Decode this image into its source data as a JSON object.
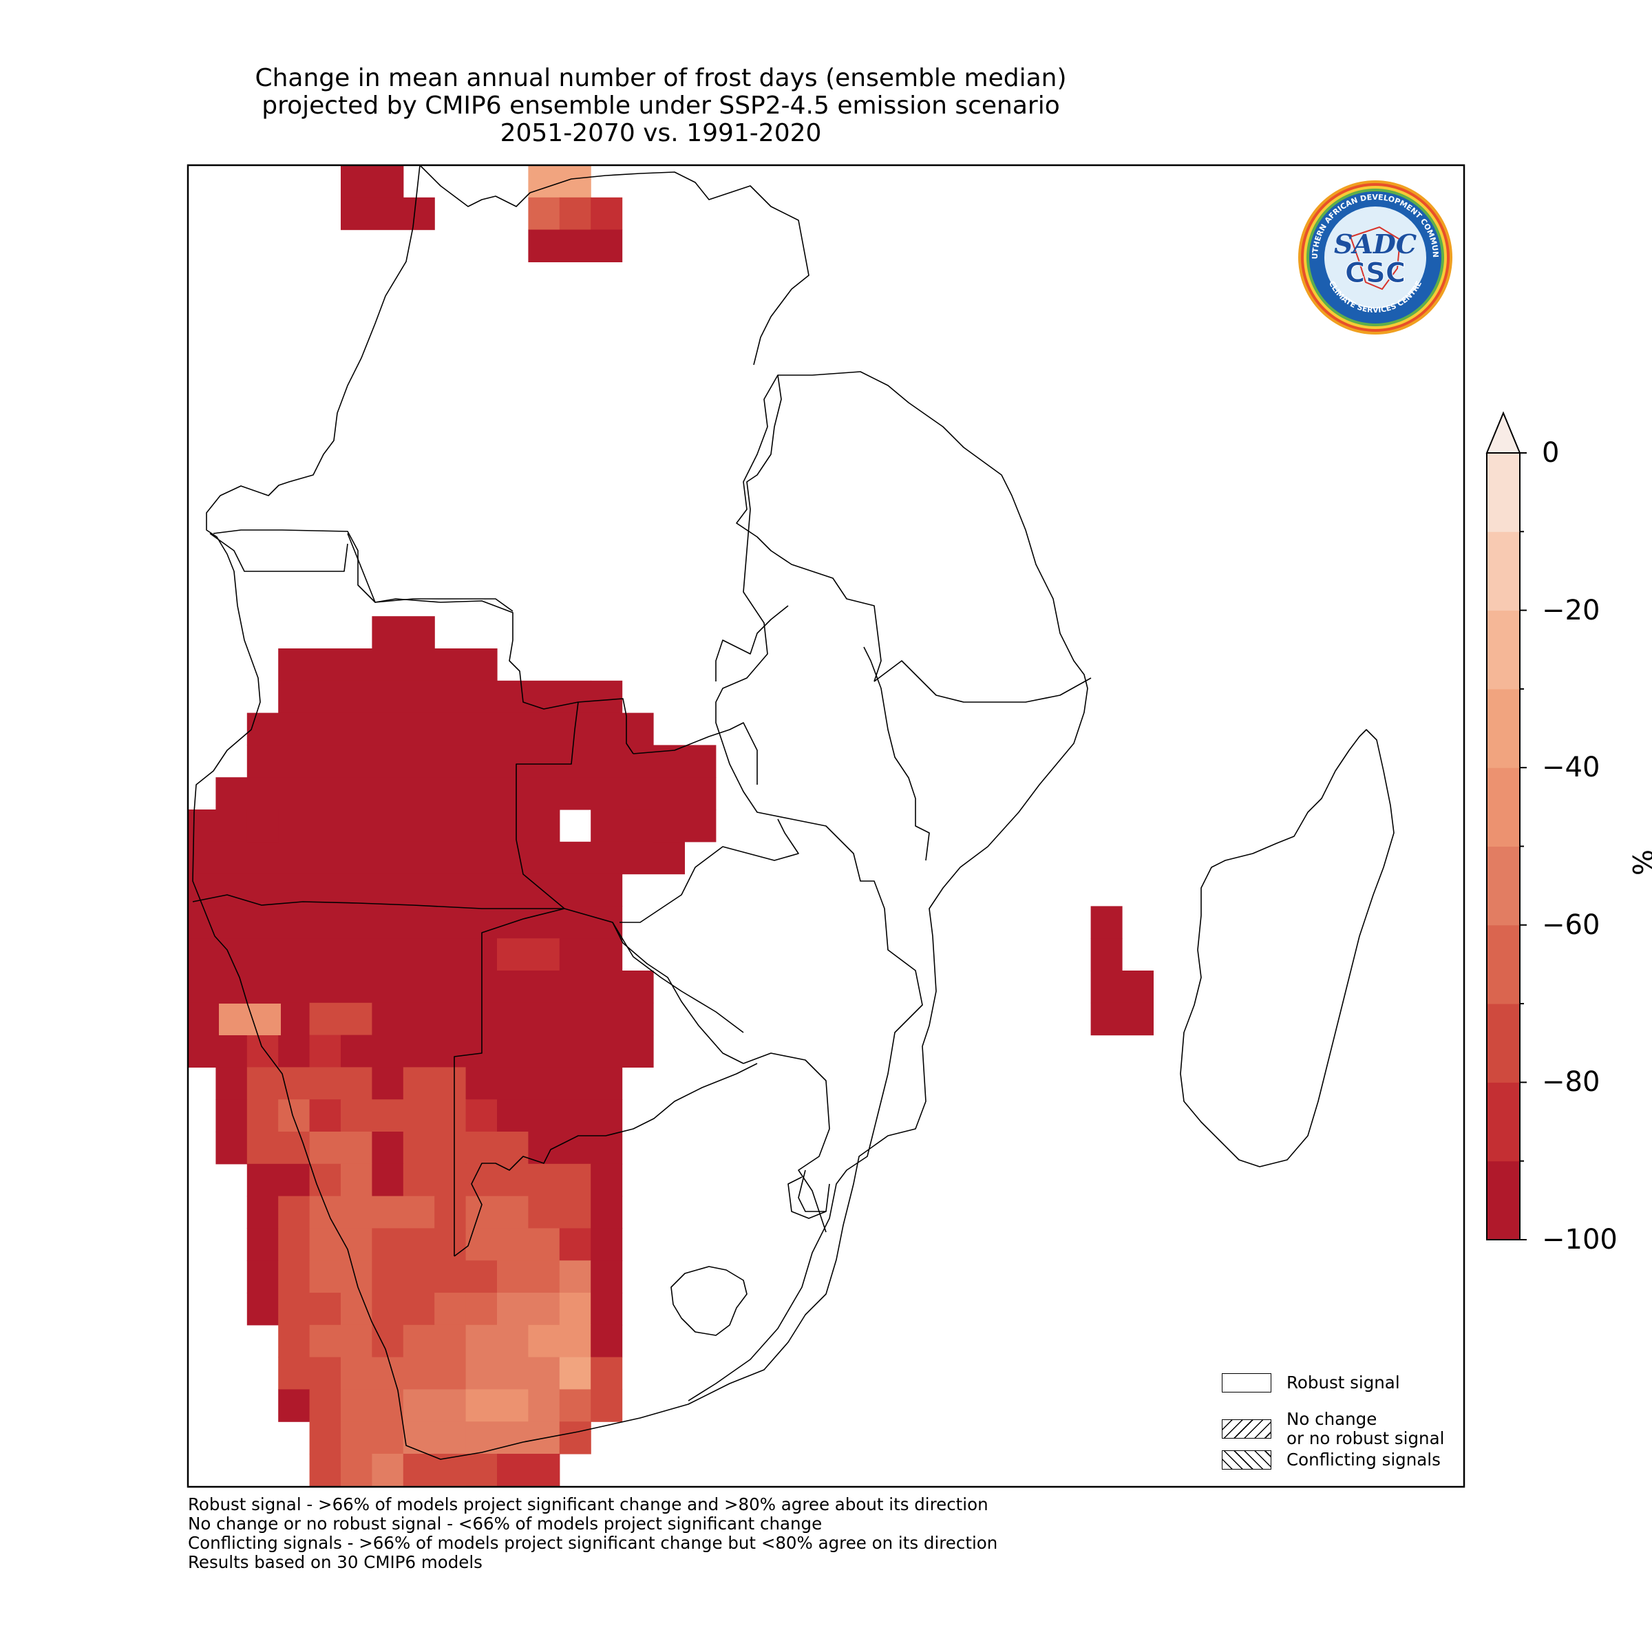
{
  "title_lines": [
    "Change in mean annual number of frost days (ensemble median)",
    "projected by CMIP6 ensemble under SSP2-4.5 emission scenario",
    "2051-2070 vs. 1991-2020"
  ],
  "colorbar": {
    "unit": "%",
    "tick_labels": [
      "0",
      "−20",
      "−40",
      "−60",
      "−80",
      "−100"
    ],
    "range": [
      -100,
      0
    ],
    "levels": [
      -100,
      -90,
      -80,
      -70,
      -60,
      -50,
      -40,
      -30,
      -20,
      -10,
      0
    ],
    "colors": [
      "#b0192b",
      "#c42f33",
      "#cf4a3e",
      "#da654f",
      "#e27d62",
      "#ec9270",
      "#f1a47f",
      "#f5b797",
      "#f8cab2",
      "#f9dfd1",
      "#f8ece6"
    ],
    "extend": "max"
  },
  "legend": {
    "items": [
      {
        "label": "Robust signal",
        "pattern": "none"
      },
      {
        "label": "No change\nor no robust signal",
        "pattern": "forward-hatch"
      },
      {
        "label": "Conflicting signals",
        "pattern": "back-hatch"
      }
    ]
  },
  "footnotes": [
    "Robust signal - >66% of models project significant change and >80% agree about its direction",
    "No change or no robust signal - <66% of models project significant change",
    "Conflicting signals - >66% of models project significant change but <80% agree on its direction",
    "Results based on 30 CMIP6 models"
  ],
  "logo": {
    "ring_text_top": "SOUTHERN AFRICAN DEVELOPMENT COMMUNITY",
    "ring_text_bottom": "CLIMATE SERVICES CENTRE",
    "acronym_top": "SADC",
    "acronym_bottom": "CSC"
  },
  "chart_data": {
    "type": "heatmap",
    "region": "Southern Africa",
    "variable": "Change in mean annual number of frost days",
    "units": "%",
    "note": "Coloured grid cells over land where frost days occur; values are percent change by colour level",
    "value_levels": {
      "a": -95,
      "b": -85,
      "c": -75,
      "d": -65,
      "e": -55,
      "f": -45,
      "g": -35
    },
    "grid_rows": [
      "..................................................",
      "..................................................",
      "......................................e...........",
      ".........aaa...........................bcc.........",
      "..........................................a......."
    ]
  }
}
